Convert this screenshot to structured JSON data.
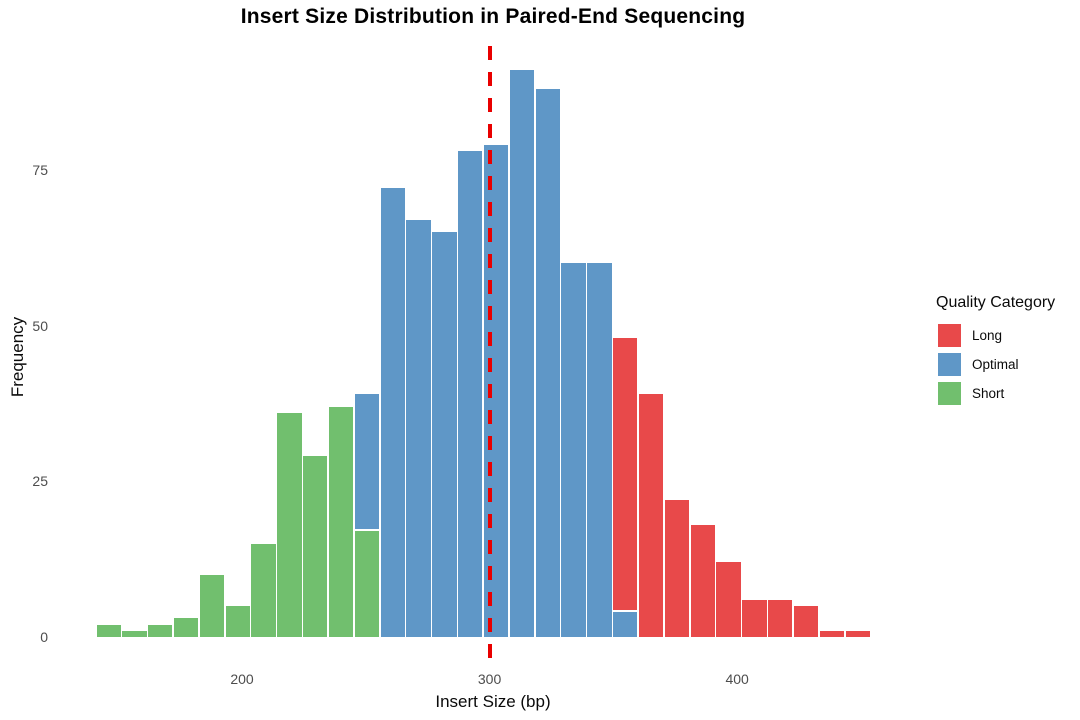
{
  "chart_data": {
    "type": "bar",
    "variant": "stacked-histogram",
    "title": "Insert Size Distribution in Paired-End Sequencing",
    "xlabel": "Insert Size (bp)",
    "ylabel": "Frequency",
    "x_ticks": [
      200,
      300,
      400
    ],
    "y_ticks": [
      0,
      25,
      50,
      75
    ],
    "xlim_bp": [
      140,
      455
    ],
    "ylim": [
      0,
      95
    ],
    "grid": false,
    "bin_start_bp": 140,
    "bin_width_bp": 10.5,
    "categories": [
      "Short",
      "Optimal",
      "Long"
    ],
    "colors": {
      "Short": "#71BF6E",
      "Optimal": "#5F97C7",
      "Long": "#E8494A"
    },
    "bins": [
      {
        "segments": [
          {
            "category": "Short",
            "count": 2
          }
        ]
      },
      {
        "segments": [
          {
            "category": "Short",
            "count": 1
          }
        ]
      },
      {
        "segments": [
          {
            "category": "Short",
            "count": 2
          }
        ]
      },
      {
        "segments": [
          {
            "category": "Short",
            "count": 3
          }
        ]
      },
      {
        "segments": [
          {
            "category": "Short",
            "count": 10
          }
        ]
      },
      {
        "segments": [
          {
            "category": "Short",
            "count": 5
          }
        ]
      },
      {
        "segments": [
          {
            "category": "Short",
            "count": 15
          }
        ]
      },
      {
        "segments": [
          {
            "category": "Short",
            "count": 36
          }
        ]
      },
      {
        "segments": [
          {
            "category": "Short",
            "count": 29
          }
        ]
      },
      {
        "segments": [
          {
            "category": "Short",
            "count": 37
          }
        ]
      },
      {
        "segments": [
          {
            "category": "Short",
            "count": 17
          },
          {
            "category": "Optimal",
            "count": 22
          }
        ]
      },
      {
        "segments": [
          {
            "category": "Optimal",
            "count": 72
          }
        ]
      },
      {
        "segments": [
          {
            "category": "Optimal",
            "count": 67
          }
        ]
      },
      {
        "segments": [
          {
            "category": "Optimal",
            "count": 65
          }
        ]
      },
      {
        "segments": [
          {
            "category": "Optimal",
            "count": 78
          }
        ]
      },
      {
        "segments": [
          {
            "category": "Optimal",
            "count": 79
          }
        ]
      },
      {
        "segments": [
          {
            "category": "Optimal",
            "count": 91
          }
        ]
      },
      {
        "segments": [
          {
            "category": "Optimal",
            "count": 88
          }
        ]
      },
      {
        "segments": [
          {
            "category": "Optimal",
            "count": 60
          }
        ]
      },
      {
        "segments": [
          {
            "category": "Optimal",
            "count": 60
          }
        ]
      },
      {
        "segments": [
          {
            "category": "Optimal",
            "count": 4
          },
          {
            "category": "Long",
            "count": 44
          }
        ]
      },
      {
        "segments": [
          {
            "category": "Long",
            "count": 39
          }
        ]
      },
      {
        "segments": [
          {
            "category": "Long",
            "count": 22
          }
        ]
      },
      {
        "segments": [
          {
            "category": "Long",
            "count": 18
          }
        ]
      },
      {
        "segments": [
          {
            "category": "Long",
            "count": 12
          }
        ]
      },
      {
        "segments": [
          {
            "category": "Long",
            "count": 6
          }
        ]
      },
      {
        "segments": [
          {
            "category": "Long",
            "count": 6
          }
        ]
      },
      {
        "segments": [
          {
            "category": "Long",
            "count": 5
          }
        ]
      },
      {
        "segments": [
          {
            "category": "Long",
            "count": 1
          }
        ]
      },
      {
        "segments": [
          {
            "category": "Long",
            "count": 1
          }
        ]
      }
    ],
    "vline": {
      "x": 300,
      "color": "#E90000",
      "style": "dashed"
    },
    "legend": {
      "title": "Quality Category",
      "position": "right",
      "entries": [
        {
          "label": "Long",
          "color": "#E8494A"
        },
        {
          "label": "Optimal",
          "color": "#5F97C7"
        },
        {
          "label": "Short",
          "color": "#71BF6E"
        }
      ]
    },
    "axis_text_color": "#4D4D4D"
  }
}
